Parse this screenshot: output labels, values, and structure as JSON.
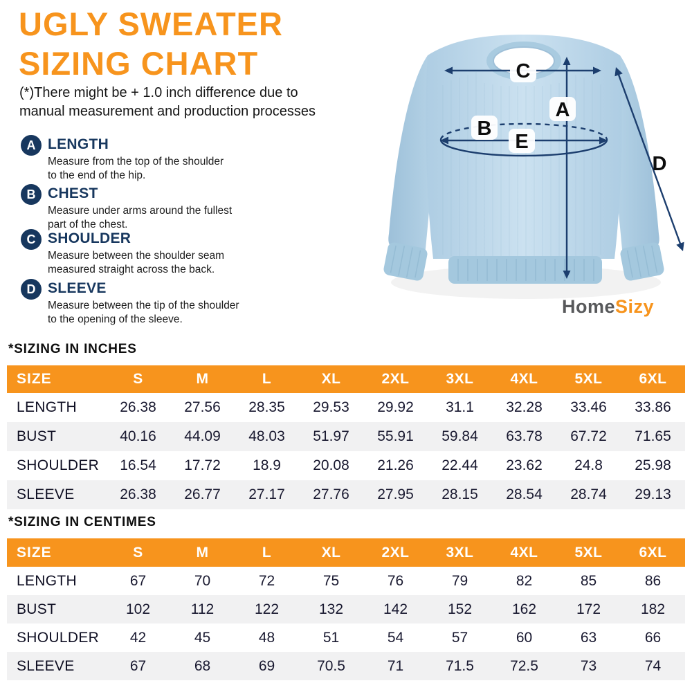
{
  "header": {
    "title_line1": "UGLY SWEATER",
    "title_line2": "SIZING CHART",
    "disclaimer": "(*)There might be + 1.0 inch difference due to\nmanual measurement and production processes"
  },
  "legend": {
    "items": [
      {
        "badge": "A",
        "title": "LENGTH",
        "desc": "Measure from the top of the shoulder\nto the end of the hip."
      },
      {
        "badge": "B",
        "title": "CHEST",
        "desc": "Measure under arms around the fullest\npart of the chest."
      },
      {
        "badge": "C",
        "title": "SHOULDER",
        "desc": "Measure between the shoulder seam\nmeasured straight across the back."
      },
      {
        "badge": "D",
        "title": "SLEEVE",
        "desc": "Measure between the tip of the shoulder\nto the opening of the sleeve."
      }
    ]
  },
  "diagram": {
    "labels": {
      "a": "A",
      "b": "B",
      "c": "C",
      "d": "D",
      "e": "E"
    }
  },
  "logo": {
    "part1": "Home",
    "part2": "Sizy"
  },
  "colors": {
    "accent_orange": "#F7941D",
    "navy": "#17375E",
    "arrow_navy": "#1C3E6E",
    "sweater_blue": "#BCD7EA",
    "row_alt_gray": "#F1F1F2"
  },
  "tables": [
    {
      "section_title": "*SIZING IN INCHES",
      "header": [
        "SIZE",
        "S",
        "M",
        "L",
        "XL",
        "2XL",
        "3XL",
        "4XL",
        "5XL",
        "6XL"
      ],
      "rows": [
        {
          "label": "LENGTH",
          "values": [
            "26.38",
            "27.56",
            "28.35",
            "29.53",
            "29.92",
            "31.1",
            "32.28",
            "33.46",
            "33.86"
          ]
        },
        {
          "label": "BUST",
          "values": [
            "40.16",
            "44.09",
            "48.03",
            "51.97",
            "55.91",
            "59.84",
            "63.78",
            "67.72",
            "71.65"
          ]
        },
        {
          "label": "SHOULDER",
          "values": [
            "16.54",
            "17.72",
            "18.9",
            "20.08",
            "21.26",
            "22.44",
            "23.62",
            "24.8",
            "25.98"
          ]
        },
        {
          "label": "SLEEVE",
          "values": [
            "26.38",
            "26.77",
            "27.17",
            "27.76",
            "27.95",
            "28.15",
            "28.54",
            "28.74",
            "29.13"
          ]
        }
      ]
    },
    {
      "section_title": "*SIZING IN CENTIMES",
      "header": [
        "SIZE",
        "S",
        "M",
        "L",
        "XL",
        "2XL",
        "3XL",
        "4XL",
        "5XL",
        "6XL"
      ],
      "rows": [
        {
          "label": "LENGTH",
          "values": [
            "67",
            "70",
            "72",
            "75",
            "76",
            "79",
            "82",
            "85",
            "86"
          ]
        },
        {
          "label": "BUST",
          "values": [
            "102",
            "112",
            "122",
            "132",
            "142",
            "152",
            "162",
            "172",
            "182"
          ]
        },
        {
          "label": "SHOULDER",
          "values": [
            "42",
            "45",
            "48",
            "51",
            "54",
            "57",
            "60",
            "63",
            "66"
          ]
        },
        {
          "label": "SLEEVE",
          "values": [
            "67",
            "68",
            "69",
            "70.5",
            "71",
            "71.5",
            "72.5",
            "73",
            "74"
          ]
        }
      ]
    }
  ]
}
